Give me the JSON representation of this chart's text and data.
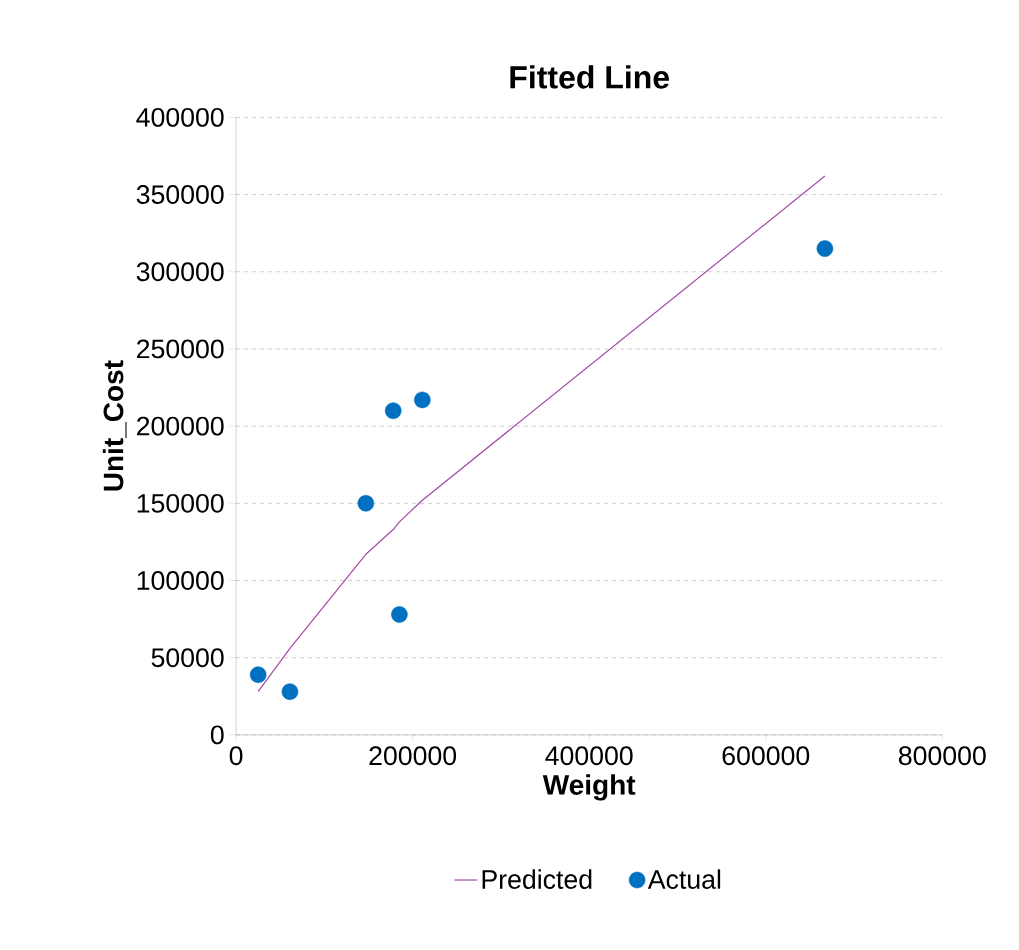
{
  "chart_data": {
    "type": "scatter",
    "title": "Fitted Line",
    "xlabel": "Weight",
    "ylabel": "Unit_Cost",
    "xlim": [
      0,
      800000
    ],
    "xticks": [
      0,
      200000,
      400000,
      600000,
      800000
    ],
    "ylim": [
      0,
      400000
    ],
    "yticks": [
      0,
      50000,
      100000,
      150000,
      200000,
      250000,
      300000,
      350000,
      400000
    ],
    "grid": "y",
    "legend": "bottom",
    "series": [
      {
        "name": "Predicted",
        "type": "line",
        "color": "#a349a4",
        "x": [
          25000,
          61000,
          147000,
          178000,
          185000,
          211000,
          667000
        ],
        "values": [
          28000,
          56000,
          117000,
          133000,
          138000,
          152000,
          362000
        ]
      },
      {
        "name": "Actual",
        "marker": "circle",
        "color": "#0070c0",
        "x": [
          25000,
          61000,
          147000,
          178000,
          185000,
          211000,
          667000
        ],
        "values": [
          39000,
          28000,
          150000,
          210000,
          78000,
          217000,
          315000
        ]
      }
    ]
  }
}
